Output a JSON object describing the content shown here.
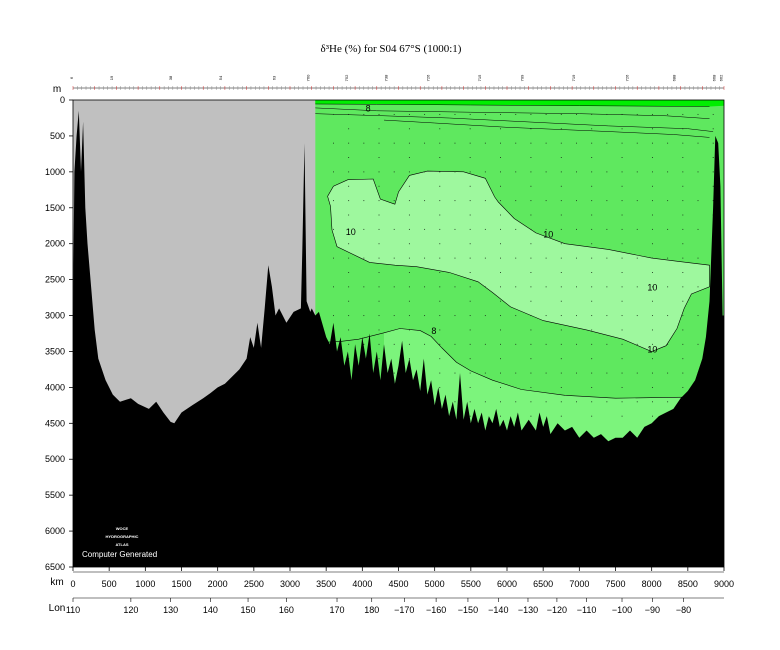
{
  "chart_data": {
    "type": "contour-section",
    "title": "δ³He (%) for S04 67°S (1000:1)",
    "depth_axis": {
      "label": "m",
      "range": [
        0,
        6500
      ],
      "ticks": [
        0,
        500,
        1000,
        1500,
        2000,
        2500,
        3000,
        3500,
        4000,
        4500,
        5000,
        5500,
        6000,
        6500
      ]
    },
    "distance_axis": {
      "label": "km",
      "range": [
        0,
        9000
      ],
      "ticks": [
        0,
        500,
        1000,
        1500,
        2000,
        2500,
        3000,
        3500,
        4000,
        4500,
        5000,
        5500,
        6000,
        6500,
        7000,
        7500,
        8000,
        8500,
        9000
      ]
    },
    "lon_axis": {
      "label": "Lon",
      "ticks": [
        {
          "km": 0,
          "label": "110"
        },
        {
          "km": 800,
          "label": "120"
        },
        {
          "km": 1350,
          "label": "130"
        },
        {
          "km": 1900,
          "label": "140"
        },
        {
          "km": 2420,
          "label": "150"
        },
        {
          "km": 2950,
          "label": "160"
        },
        {
          "km": 3650,
          "label": "170"
        },
        {
          "km": 4130,
          "label": "180"
        },
        {
          "km": 4580,
          "label": "−170"
        },
        {
          "km": 5020,
          "label": "−160"
        },
        {
          "km": 5460,
          "label": "−150"
        },
        {
          "km": 5880,
          "label": "−140"
        },
        {
          "km": 6290,
          "label": "−130"
        },
        {
          "km": 6690,
          "label": "−120"
        },
        {
          "km": 7100,
          "label": "−110"
        },
        {
          "km": 7590,
          "label": "−100"
        },
        {
          "km": 8010,
          "label": "−90"
        },
        {
          "km": 8440,
          "label": "−80"
        }
      ]
    },
    "station_labels": [
      {
        "km": 0,
        "label": "6"
      },
      {
        "km": 550,
        "label": "19"
      },
      {
        "km": 1370,
        "label": "38"
      },
      {
        "km": 2060,
        "label": "54"
      },
      {
        "km": 2800,
        "label": "63"
      },
      {
        "km": 3270,
        "label": "760"
      },
      {
        "km": 3800,
        "label": "752"
      },
      {
        "km": 4350,
        "label": "738"
      },
      {
        "km": 4930,
        "label": "726"
      },
      {
        "km": 5640,
        "label": "715"
      },
      {
        "km": 6230,
        "label": "709"
      },
      {
        "km": 6940,
        "label": "719"
      },
      {
        "km": 7680,
        "label": "726"
      },
      {
        "km": 8330,
        "label": "688"
      },
      {
        "km": 8880,
        "label": "668"
      },
      {
        "km": 8980,
        "label": "662"
      }
    ],
    "contours": [
      {
        "level": "8",
        "label_pos": [
          4080,
          120
        ]
      },
      {
        "level": "8",
        "label_pos": [
          4990,
          3215
        ]
      },
      {
        "level": "10",
        "label_pos": [
          3840,
          1840
        ]
      },
      {
        "level": "10",
        "label_pos": [
          6570,
          1875
        ]
      },
      {
        "level": "10",
        "label_pos": [
          8010,
          2610
        ]
      },
      {
        "level": "10",
        "label_pos": [
          8010,
          3470
        ]
      }
    ],
    "fill_colors": {
      "below_8": "#5fe85f",
      "8_to_10": "#7cf47c",
      "above_10": "#9ef89e",
      "surface": "#00ee00",
      "no_data": "#c0c0c0",
      "bathymetry": "#000000"
    },
    "data_start_km": 3350,
    "watermark": [
      "WOCE",
      "HYDROGRAPHIC",
      "ATLAS"
    ],
    "credit": "Computer Generated"
  }
}
